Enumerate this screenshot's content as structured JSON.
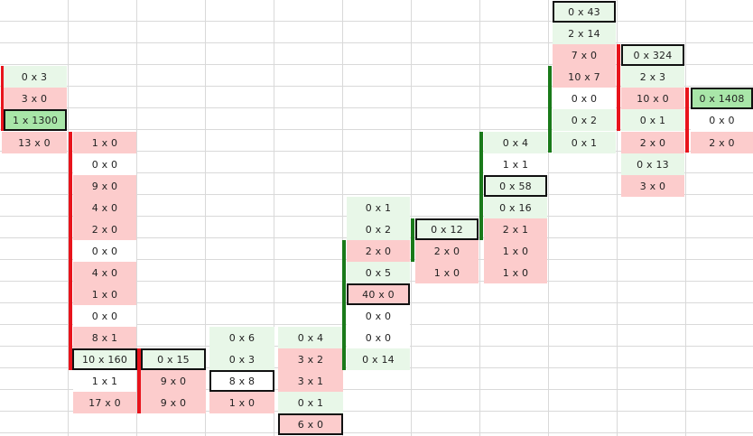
{
  "colors": {
    "gridline": "#d9d9d9",
    "light_green": "#e8f7e8",
    "light_red": "#fccccc",
    "strong_green": "#a8e6a8",
    "bar_red": "#e8141c",
    "bar_green": "#1a7a1a",
    "box_border": "#111111"
  },
  "columns": [
    [
      "0 x 3",
      "3 x 0",
      "1 x 1300",
      "13 x 0"
    ],
    [
      "1 x 0",
      "0 x 0",
      "9 x 0",
      "4 x 0",
      "2 x 0",
      "0 x 0",
      "4 x 0",
      "1 x 0",
      "0 x 0",
      "8 x 1",
      "10 x 160",
      "1 x 1",
      "17 x 0"
    ],
    [
      "0 x 15",
      "9 x 0",
      "9 x 0"
    ],
    [
      "0 x 6",
      "0 x 3",
      "8 x 8",
      "1 x 0"
    ],
    [
      "0 x 4",
      "3 x 2",
      "3 x 1",
      "0 x 1",
      "6 x 0"
    ],
    [
      "0 x 1",
      "0 x 2",
      "2 x 0",
      "0 x 5",
      "40 x 0",
      "0 x 0",
      "0 x 0",
      "0 x 14"
    ],
    [
      "0 x 12",
      "2 x 0",
      "1 x 0"
    ],
    [
      "0 x 4",
      "1 x 1",
      "0 x 58",
      "0 x 16",
      "2 x 1",
      "1 x 0",
      "1 x 0"
    ],
    [
      "0 x 43",
      "2 x 14",
      "7 x 0",
      "10 x 7",
      "0 x 0",
      "0 x 2",
      "0 x 1"
    ],
    [
      "0 x 324",
      "2 x 3",
      "10 x 0",
      "0 x 1",
      "2 x 0",
      "0 x 13",
      "3 x 0"
    ],
    [
      "0 x 1408",
      "0 x 0",
      "2 x 0"
    ]
  ]
}
